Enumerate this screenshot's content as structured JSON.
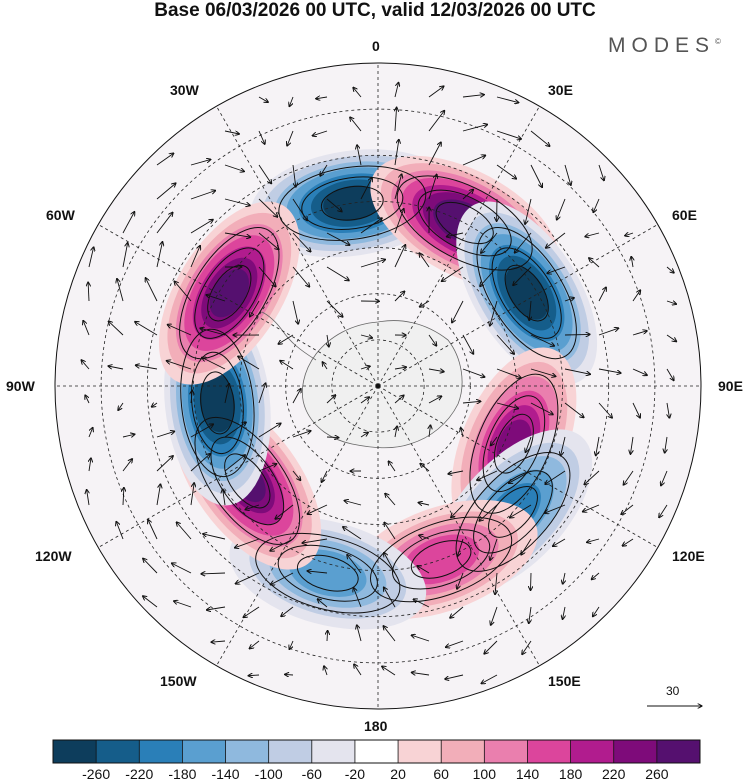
{
  "title": "Base 06/03/2026 00 UTC, valid 12/03/2026 00 UTC",
  "brand": "MODES",
  "brand_mark": "©",
  "longitude_labels": {
    "deg0": "0",
    "deg30e": "30E",
    "deg60e": "60E",
    "deg90e": "90E",
    "deg120e": "120E",
    "deg150e": "150E",
    "deg180": "180",
    "deg150w": "150W",
    "deg120w": "120W",
    "deg90w": "90W",
    "deg60w": "60W",
    "deg30w": "30W"
  },
  "vector_scale": "30",
  "colorbar": {
    "colors": [
      "#0d3d5c",
      "#155d8a",
      "#2a7fb8",
      "#5a9fd0",
      "#8fb9de",
      "#c0cde4",
      "#e4e4ee",
      "#ffffff",
      "#f8d3d5",
      "#f2aeb9",
      "#ea7fae",
      "#dc459c",
      "#b11c8e",
      "#7e0b7a",
      "#55106f"
    ],
    "ticks": [
      "-260",
      "-220",
      "-180",
      "-140",
      "-100",
      "-60",
      "-20",
      "20",
      "60",
      "100",
      "140",
      "180",
      "220",
      "260"
    ]
  },
  "anomaly_centers": [
    {
      "lon": -8,
      "lat": -50,
      "value": -280
    },
    {
      "lon": 28,
      "lat": -50,
      "value": 300
    },
    {
      "lon": 58,
      "lat": -52,
      "value": -280
    },
    {
      "lon": 113,
      "lat": -58,
      "value": 220
    },
    {
      "lon": 133,
      "lat": -50,
      "value": -200
    },
    {
      "lon": 160,
      "lat": -50,
      "value": 160
    },
    {
      "lon": -165,
      "lat": -48,
      "value": -160
    },
    {
      "lon": -126,
      "lat": -55,
      "value": 260
    },
    {
      "lon": -96,
      "lat": -55,
      "value": -280
    },
    {
      "lon": -58,
      "lat": -52,
      "value": 270
    }
  ]
}
